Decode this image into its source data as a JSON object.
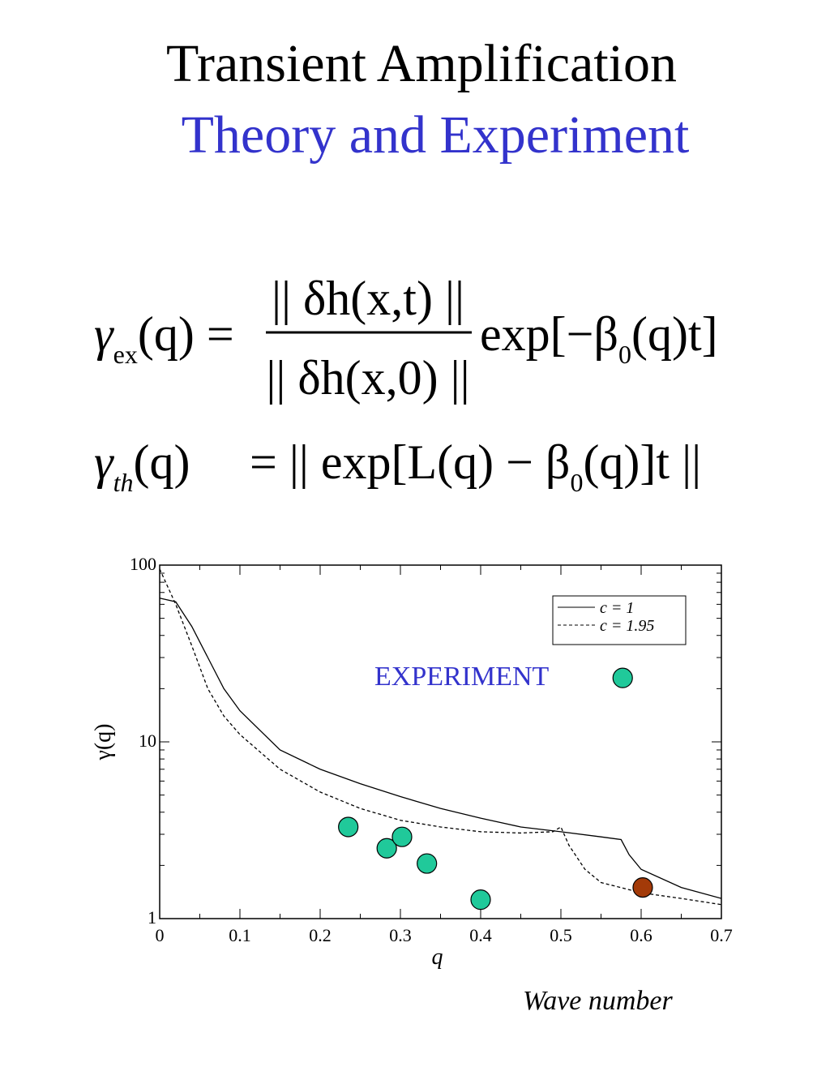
{
  "title": "Transient Amplification",
  "subtitle": "Theory and Experiment",
  "equations": [
    {
      "lhs": "γ",
      "lhs_sub": "ex",
      "lhs_arg": "(q) =",
      "numerator": "|| δh(x,t) ||",
      "denominator": "|| δh(x,0) ||",
      "rhs": "exp[−β",
      "rhs_sub": "0",
      "rhs_tail": "(q)t]"
    },
    {
      "lhs": "γ",
      "lhs_sub": "th",
      "lhs_arg": "(q)",
      "rhs": "= || exp[L(q) − β",
      "rhs_sub": "0",
      "rhs_tail": "(q)]t ||"
    }
  ],
  "chart_data": {
    "type": "line",
    "x_label": "q",
    "y_label": "γ(q)",
    "annotation": "EXPERIMENT",
    "annotation_color": "#3333cc",
    "xlim": [
      0,
      0.7
    ],
    "xticks": [
      0,
      0.1,
      0.2,
      0.3,
      0.4,
      0.5,
      0.6,
      0.7
    ],
    "ylim": [
      1,
      100
    ],
    "yticks": [
      1,
      10,
      100
    ],
    "y_log": true,
    "legend": "upper right",
    "series": [
      {
        "name": "c = 1",
        "color": "#000000",
        "style": "solid",
        "x": [
          0,
          0.02,
          0.04,
          0.06,
          0.08,
          0.1,
          0.15,
          0.2,
          0.25,
          0.3,
          0.35,
          0.4,
          0.45,
          0.5,
          0.55,
          0.575,
          0.585,
          0.6,
          0.65,
          0.7
        ],
        "values": [
          65,
          62,
          45,
          30,
          20,
          15,
          9,
          7,
          5.8,
          4.9,
          4.2,
          3.7,
          3.3,
          3.1,
          2.9,
          2.8,
          2.3,
          1.9,
          1.5,
          1.3
        ]
      },
      {
        "name": "c = 1.95",
        "color": "#000000",
        "style": "dashed",
        "x": [
          0,
          0.02,
          0.04,
          0.06,
          0.08,
          0.1,
          0.15,
          0.2,
          0.25,
          0.3,
          0.35,
          0.4,
          0.45,
          0.49,
          0.5,
          0.51,
          0.53,
          0.55,
          0.6,
          0.65,
          0.7
        ],
        "values": [
          95,
          60,
          35,
          20,
          14,
          11,
          7,
          5.2,
          4.2,
          3.6,
          3.3,
          3.1,
          3.05,
          3.1,
          3.3,
          2.6,
          1.9,
          1.6,
          1.4,
          1.3,
          1.2
        ]
      },
      {
        "type": "scatter",
        "color": "#20c99a",
        "x": [
          0.235,
          0.283,
          0.302,
          0.333,
          0.4,
          0.577
        ],
        "values": [
          3.3,
          2.5,
          2.9,
          2.05,
          1.28,
          23
        ]
      },
      {
        "type": "scatter",
        "color": "#a33a08",
        "x": [
          0.602
        ],
        "values": [
          1.5
        ]
      }
    ]
  },
  "caption": "Wave number"
}
